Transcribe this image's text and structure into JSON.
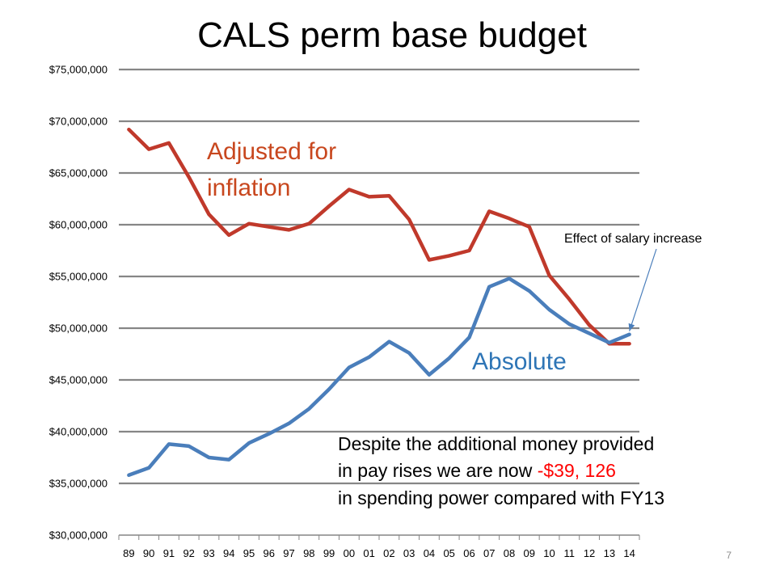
{
  "slide_number": "7",
  "colors": {
    "adjusted": "#c0392b",
    "adjusted_label": "#c8471e",
    "absolute": "#4a7ebb",
    "absolute_label": "#2e75b6",
    "highlight": "#ff0000",
    "grid": "#868686"
  },
  "chart_data": {
    "type": "line",
    "title": "CALS perm base budget",
    "xlabel": "",
    "ylabel": "",
    "categories": [
      "89",
      "90",
      "91",
      "92",
      "93",
      "94",
      "95",
      "96",
      "97",
      "98",
      "99",
      "00",
      "01",
      "02",
      "03",
      "04",
      "05",
      "06",
      "07",
      "08",
      "09",
      "10",
      "11",
      "12",
      "13",
      "14"
    ],
    "ylim": [
      30000000,
      75000000
    ],
    "y_ticks": [
      30000000,
      35000000,
      40000000,
      45000000,
      50000000,
      55000000,
      60000000,
      65000000,
      70000000,
      75000000
    ],
    "y_tick_labels": [
      "$30,000,000",
      "$35,000,000",
      "$40,000,000",
      "$45,000,000",
      "$50,000,000",
      "$55,000,000",
      "$60,000,000",
      "$65,000,000",
      "$70,000,000",
      "$75,000,000"
    ],
    "grid": true,
    "legend": "none",
    "series": [
      {
        "name": "Adjusted for inflation",
        "color_key": "adjusted",
        "values": [
          69200000,
          67300000,
          67900000,
          64600000,
          61000000,
          59000000,
          60100000,
          59800000,
          59500000,
          60100000,
          61800000,
          63400000,
          62700000,
          62800000,
          60500000,
          56600000,
          57000000,
          57500000,
          61300000,
          60600000,
          59800000,
          55100000,
          52800000,
          50300000,
          48500000,
          48500000
        ]
      },
      {
        "name": "Absolute",
        "color_key": "absolute",
        "values": [
          35800000,
          36500000,
          38800000,
          38600000,
          37500000,
          37300000,
          38900000,
          39800000,
          40800000,
          42200000,
          44100000,
          46200000,
          47200000,
          48700000,
          47600000,
          45500000,
          47100000,
          49100000,
          54000000,
          54800000,
          53600000,
          51800000,
          50400000,
          49500000,
          48600000,
          49400000
        ]
      }
    ],
    "annotations": {
      "salary_label": "Effect of salary increase",
      "salary_arrow_target_index": 25,
      "salary_arrow_target_series": 1
    }
  },
  "note": {
    "line1": "Despite the additional money provided",
    "line2_prefix": "in pay rises we are now ",
    "line2_highlight": "-$39, 126",
    "line3": "in spending power compared with FY13"
  }
}
